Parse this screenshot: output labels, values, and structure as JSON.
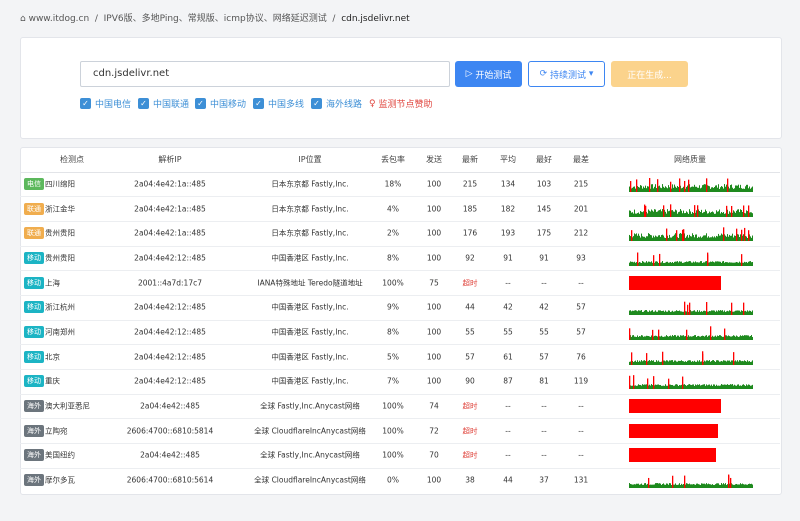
{
  "breadcrumb": [
    "www.itdog.cn",
    "IPV6版、多地Ping、常规版、icmp协议、网络延迟测试",
    "cdn.jsdelivr.net"
  ],
  "input": "cdn.jsdelivr.net",
  "buttons": [
    "开始测试",
    "持续测试",
    "正在生成..."
  ],
  "checkboxes": [
    "中国电信",
    "中国联通",
    "中国移动",
    "中国多线",
    "海外线路"
  ],
  "sponsor": "监测节点赞助",
  "table": {
    "headers": [
      "检测点",
      "解析IP",
      "IP位置",
      "丢包率",
      "发送",
      "最新",
      "平均",
      "最好",
      "最差",
      "网络质量"
    ],
    "rows": [
      [
        "电信",
        "四川绵阳",
        "2a04:4e42:1a::485",
        "日本东京都 Fastly,Inc.",
        "18%",
        "100",
        "215",
        "134",
        "103",
        "215"
      ],
      [
        "联通",
        "浙江金华",
        "2a04:4e42:1a::485",
        "日本东京都 Fastly,Inc.",
        "4%",
        "100",
        "185",
        "182",
        "145",
        "201"
      ],
      [
        "联通",
        "贵州贵阳",
        "2a04:4e42:1a::485",
        "日本东京都 Fastly,Inc.",
        "2%",
        "100",
        "176",
        "193",
        "175",
        "212"
      ],
      [
        "移动",
        "贵州贵阳",
        "2a04:4e42:12::485",
        "中国香港区 Fastly,Inc.",
        "8%",
        "100",
        "92",
        "91",
        "91",
        "93"
      ],
      [
        "移动",
        "上海",
        "2001::4a7d:17c7",
        "IANA特殊地址 Teredo隧道地址",
        "100%",
        "75",
        "超时",
        "--",
        "--",
        "--"
      ],
      [
        "移动",
        "浙江杭州",
        "2a04:4e42:12::485",
        "中国香港区 Fastly,Inc.",
        "9%",
        "100",
        "44",
        "42",
        "42",
        "57"
      ],
      [
        "移动",
        "河南郑州",
        "2a04:4e42:12::485",
        "中国香港区 Fastly,Inc.",
        "8%",
        "100",
        "55",
        "55",
        "55",
        "57"
      ],
      [
        "移动",
        "北京",
        "2a04:4e42:12::485",
        "中国香港区 Fastly,Inc.",
        "5%",
        "100",
        "57",
        "61",
        "57",
        "76"
      ],
      [
        "移动",
        "重庆",
        "2a04:4e42:12::485",
        "中国香港区 Fastly,Inc.",
        "7%",
        "100",
        "90",
        "87",
        "81",
        "119"
      ],
      [
        "海外",
        "澳大利亚悉尼",
        "2a04:4e42::485",
        "全球 Fastly,Inc.Anycast网络",
        "100%",
        "74",
        "超时",
        "--",
        "--",
        "--"
      ],
      [
        "海外",
        "立陶宛",
        "2606:4700::6810:5814",
        "全球 CloudflareIncAnycast网络",
        "100%",
        "72",
        "超时",
        "--",
        "--",
        "--"
      ],
      [
        "海外",
        "美国纽约",
        "2a04:4e42::485",
        "全球 Fastly,Inc.Anycast网络",
        "100%",
        "70",
        "超时",
        "--",
        "--",
        "--"
      ],
      [
        "海外",
        "摩尔多瓦",
        "2606:4700::6810:5614",
        "全球 CloudflareIncAnycast网络",
        "0%",
        "100",
        "38",
        "44",
        "37",
        "131"
      ]
    ]
  }
}
